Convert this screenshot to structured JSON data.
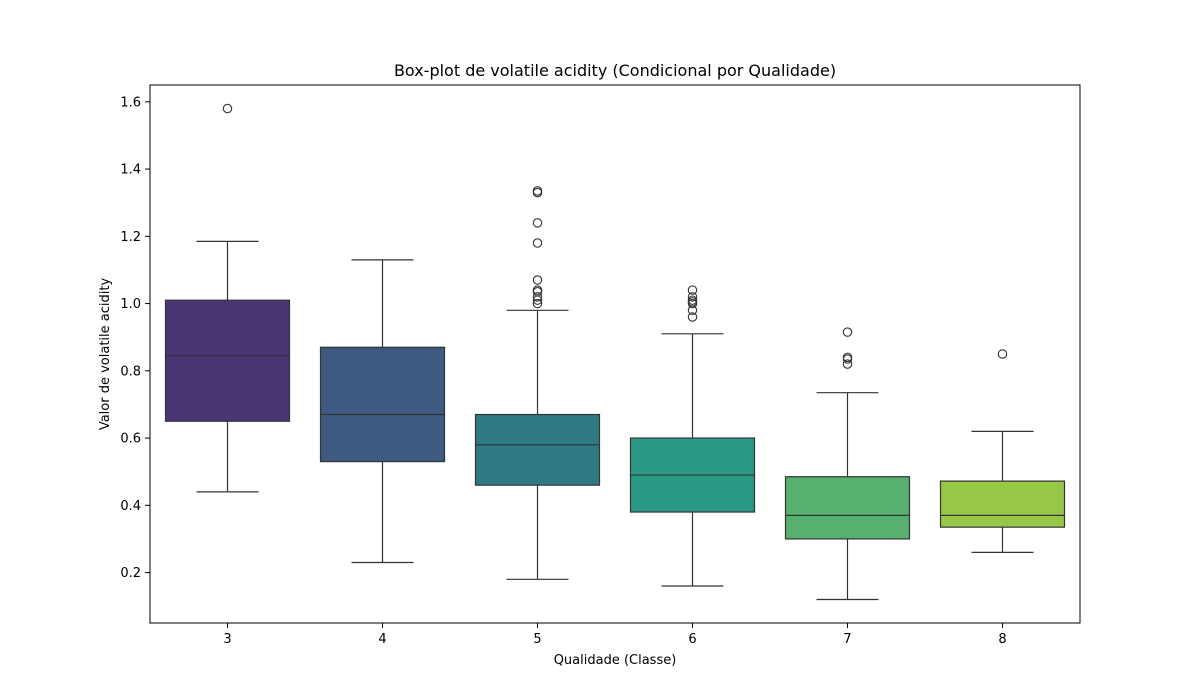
{
  "chart_data": {
    "type": "boxplot",
    "title": "Box-plot de volatile acidity (Condicional por Qualidade)",
    "xlabel": "Qualidade (Classe)",
    "ylabel": "Valor de volatile acidity",
    "ylim": [
      0.05,
      1.65
    ],
    "yticks": [
      "0.2",
      "0.4",
      "0.6",
      "0.8",
      "1.0",
      "1.2",
      "1.4",
      "1.6"
    ],
    "grid": false,
    "categories": [
      "3",
      "4",
      "5",
      "6",
      "7",
      "8"
    ],
    "boxes": [
      {
        "category": "3",
        "whisker_low": 0.44,
        "q1": 0.65,
        "median": 0.845,
        "q3": 1.01,
        "whisker_high": 1.185,
        "outliers": [
          1.58
        ],
        "color": "#4a3675"
      },
      {
        "category": "4",
        "whisker_low": 0.23,
        "q1": 0.53,
        "median": 0.67,
        "q3": 0.87,
        "whisker_high": 1.13,
        "outliers": [],
        "color": "#3e5a83"
      },
      {
        "category": "5",
        "whisker_low": 0.18,
        "q1": 0.46,
        "median": 0.58,
        "q3": 0.67,
        "whisker_high": 0.98,
        "outliers": [
          1.0,
          1.01,
          1.02,
          1.035,
          1.04,
          1.07,
          1.18,
          1.24,
          1.33,
          1.335
        ],
        "color": "#2e7a84"
      },
      {
        "category": "6",
        "whisker_low": 0.16,
        "q1": 0.38,
        "median": 0.49,
        "q3": 0.6,
        "whisker_high": 0.91,
        "outliers": [
          0.96,
          0.98,
          1.0,
          1.005,
          1.01,
          1.02,
          1.04
        ],
        "color": "#2a9a86"
      },
      {
        "category": "7",
        "whisker_low": 0.12,
        "q1": 0.3,
        "median": 0.37,
        "q3": 0.485,
        "whisker_high": 0.735,
        "outliers": [
          0.82,
          0.835,
          0.84,
          0.915
        ],
        "color": "#56b06f"
      },
      {
        "category": "8",
        "whisker_low": 0.26,
        "q1": 0.335,
        "median": 0.37,
        "q3": 0.472,
        "whisker_high": 0.62,
        "outliers": [
          0.85
        ],
        "color": "#97c747"
      }
    ]
  }
}
